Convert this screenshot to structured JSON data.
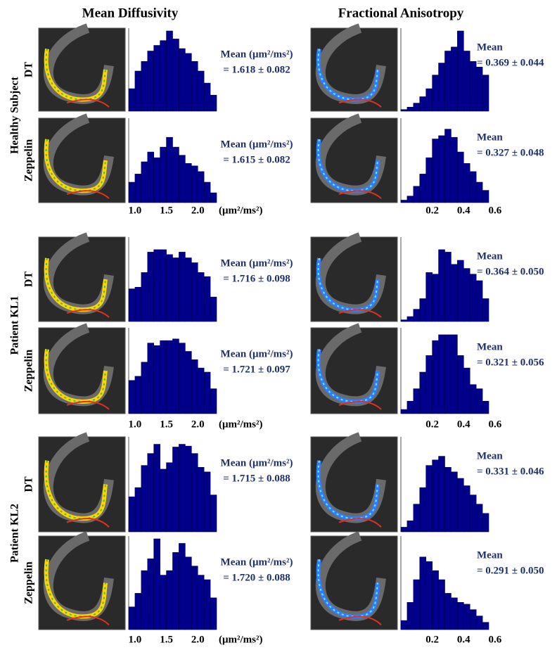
{
  "figure": {
    "column_titles": [
      "Mean Diffusivity",
      "Fractional Anisotropy"
    ],
    "groups": [
      {
        "label": "Healthy Subject",
        "rows": [
          "DT",
          "Zeppelin"
        ]
      },
      {
        "label": "Patient KL1",
        "rows": [
          "DT",
          "Zeppelin"
        ]
      },
      {
        "label": "Patient KL2",
        "rows": [
          "DT",
          "Zeppelin"
        ]
      }
    ]
  },
  "chart_data": [
    {
      "type": "histogram",
      "color": "#00008b",
      "bins": [
        0.9,
        1.0,
        1.1,
        1.2,
        1.3,
        1.4,
        1.5,
        1.6,
        1.7,
        1.8,
        1.9,
        2.0,
        2.1,
        2.2,
        2.3
      ],
      "xlim": [
        0.9,
        2.3
      ],
      "values": [
        28,
        50,
        62,
        75,
        82,
        88,
        100,
        90,
        78,
        72,
        62,
        50,
        35,
        20
      ],
      "annotation_title": "Mean (μm²/ms²)",
      "annotation": "= 1.618 ± 0.082"
    },
    {
      "type": "histogram",
      "color": "#00008b",
      "bins": [
        0,
        0.04,
        0.08,
        0.12,
        0.16,
        0.2,
        0.24,
        0.28,
        0.32,
        0.36,
        0.4,
        0.44,
        0.48,
        0.52,
        0.56
      ],
      "xlim": [
        0,
        0.56
      ],
      "values": [
        2,
        5,
        10,
        18,
        28,
        45,
        60,
        75,
        80,
        100,
        75,
        62,
        55,
        45
      ],
      "annotation_title": "Mean",
      "annotation": "= 0.369 ± 0.044"
    },
    {
      "type": "histogram",
      "color": "#00008b",
      "bins": [
        0.9,
        1.0,
        1.1,
        1.2,
        1.3,
        1.4,
        1.5,
        1.6,
        1.7,
        1.8,
        1.9,
        2.0,
        2.1,
        2.2,
        2.3
      ],
      "xlim": [
        0.9,
        2.3
      ],
      "values": [
        25,
        35,
        50,
        62,
        55,
        68,
        80,
        68,
        58,
        48,
        45,
        38,
        25,
        12
      ],
      "annotation_title": "Mean (μm²/ms²)",
      "annotation": "= 1.615 ± 0.082",
      "xticks": [
        {
          "value": 1,
          "label": "1.0"
        },
        1.5,
        {
          "value": 2,
          "label": "2.0"
        }
      ],
      "xlabel": "(μm²/ms²)"
    },
    {
      "type": "histogram",
      "color": "#00008b",
      "bins": [
        0,
        0.04,
        0.08,
        0.12,
        0.16,
        0.2,
        0.24,
        0.28,
        0.32,
        0.36,
        0.4,
        0.44,
        0.48,
        0.52,
        0.56
      ],
      "xlim": [
        0,
        0.56
      ],
      "values": [
        3,
        8,
        20,
        35,
        55,
        78,
        82,
        90,
        80,
        62,
        48,
        38,
        25,
        15
      ],
      "annotation_title": "Mean",
      "annotation": "= 0.327 ± 0.048",
      "xticks": [
        0.2,
        0.4,
        0.6
      ]
    },
    {
      "type": "histogram",
      "color": "#00008b",
      "bins": [
        0.9,
        1.0,
        1.1,
        1.2,
        1.3,
        1.4,
        1.5,
        1.6,
        1.7,
        1.8,
        1.9,
        2.0,
        2.1,
        2.2,
        2.3
      ],
      "xlim": [
        0.9,
        2.3
      ],
      "values": [
        40,
        42,
        60,
        85,
        88,
        88,
        82,
        78,
        85,
        78,
        72,
        60,
        55,
        30
      ],
      "annotation_title": "Mean (μm²/ms²)",
      "annotation": "= 1.716 ± 0.098"
    },
    {
      "type": "histogram",
      "color": "#00008b",
      "bins": [
        0,
        0.04,
        0.08,
        0.12,
        0.16,
        0.2,
        0.24,
        0.28,
        0.32,
        0.36,
        0.4,
        0.44,
        0.48,
        0.52,
        0.56
      ],
      "xlim": [
        0,
        0.56
      ],
      "values": [
        2,
        6,
        15,
        28,
        60,
        58,
        88,
        85,
        70,
        75,
        65,
        58,
        50,
        28
      ],
      "annotation_title": "Mean",
      "annotation": "= 0.364 ± 0.050"
    },
    {
      "type": "histogram",
      "color": "#00008b",
      "bins": [
        0.9,
        1.0,
        1.1,
        1.2,
        1.3,
        1.4,
        1.5,
        1.6,
        1.7,
        1.8,
        1.9,
        2.0,
        2.1,
        2.2,
        2.3
      ],
      "xlim": [
        0.9,
        2.3
      ],
      "values": [
        40,
        45,
        62,
        85,
        82,
        88,
        88,
        90,
        85,
        75,
        65,
        55,
        50,
        30
      ],
      "annotation_title": "Mean (μm²/ms²)",
      "annotation": "= 1.721 ± 0.097",
      "xticks": [
        {
          "value": 1,
          "label": "1.0"
        },
        1.5,
        {
          "value": 2,
          "label": "2.0"
        }
      ],
      "xlabel": "(μm²/ms²)"
    },
    {
      "type": "histogram",
      "color": "#00008b",
      "bins": [
        0,
        0.04,
        0.08,
        0.12,
        0.16,
        0.2,
        0.24,
        0.28,
        0.32,
        0.36,
        0.4,
        0.44,
        0.48,
        0.52,
        0.56
      ],
      "xlim": [
        0,
        0.56
      ],
      "values": [
        5,
        15,
        30,
        50,
        70,
        88,
        95,
        95,
        95,
        70,
        55,
        35,
        30,
        15
      ],
      "annotation_title": "Mean",
      "annotation": "= 0.321 ± 0.056",
      "xticks": [
        0.2,
        0.4,
        0.6
      ]
    },
    {
      "type": "histogram",
      "color": "#00008b",
      "bins": [
        0.9,
        1.0,
        1.1,
        1.2,
        1.3,
        1.4,
        1.5,
        1.6,
        1.7,
        1.8,
        1.9,
        2.0,
        2.1,
        2.2,
        2.3
      ],
      "xlim": [
        0.9,
        2.3
      ],
      "values": [
        38,
        48,
        72,
        85,
        95,
        68,
        75,
        92,
        95,
        93,
        85,
        70,
        65,
        40
      ],
      "annotation_title": "Mean (μm²/ms²)",
      "annotation": "= 1.715 ± 0.088"
    },
    {
      "type": "histogram",
      "color": "#00008b",
      "bins": [
        0,
        0.04,
        0.08,
        0.12,
        0.16,
        0.2,
        0.24,
        0.28,
        0.32,
        0.36,
        0.4,
        0.44,
        0.48,
        0.52,
        0.56
      ],
      "xlim": [
        0,
        0.56
      ],
      "values": [
        5,
        12,
        30,
        48,
        72,
        78,
        82,
        70,
        65,
        58,
        50,
        40,
        30,
        20
      ],
      "annotation_title": "Mean",
      "annotation": "= 0.331 ± 0.046"
    },
    {
      "type": "histogram",
      "color": "#00008b",
      "bins": [
        0.9,
        1.0,
        1.1,
        1.2,
        1.3,
        1.4,
        1.5,
        1.6,
        1.7,
        1.8,
        1.9,
        2.0,
        2.1,
        2.2,
        2.3
      ],
      "xlim": [
        0.9,
        2.3
      ],
      "values": [
        25,
        40,
        65,
        78,
        100,
        60,
        65,
        85,
        95,
        80,
        70,
        60,
        55,
        35
      ],
      "annotation_title": "Mean (μm²/ms²)",
      "annotation": "= 1.720 ± 0.088",
      "xticks": [
        {
          "value": 1,
          "label": "1.0"
        },
        1.5,
        {
          "value": 2,
          "label": "2.0"
        }
      ],
      "xlabel": "(μm²/ms²)"
    },
    {
      "type": "histogram",
      "color": "#00008b",
      "bins": [
        0,
        0.04,
        0.08,
        0.12,
        0.16,
        0.2,
        0.24,
        0.28,
        0.32,
        0.36,
        0.4,
        0.44,
        0.48,
        0.52,
        0.56
      ],
      "xlim": [
        0,
        0.56
      ],
      "values": [
        10,
        30,
        55,
        80,
        75,
        65,
        55,
        40,
        35,
        30,
        28,
        22,
        15,
        8
      ],
      "annotation_title": "Mean",
      "annotation": "= 0.291 ± 0.050",
      "xticks": [
        0.2,
        0.4,
        0.6
      ]
    }
  ]
}
